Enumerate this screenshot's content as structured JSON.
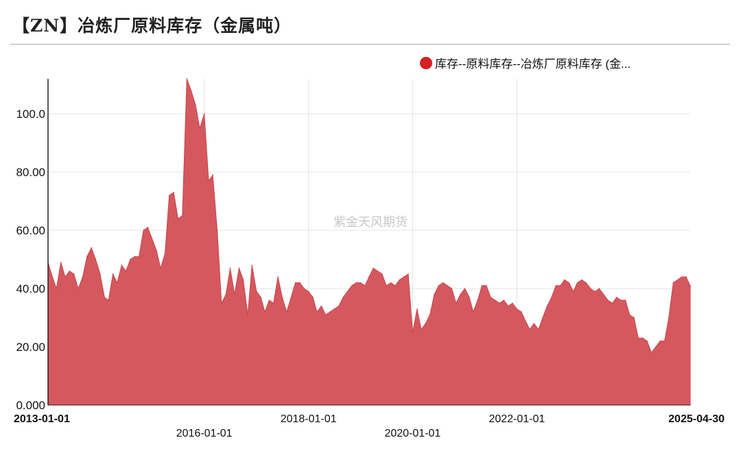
{
  "title": "【ZN】冶炼厂原料库存（金属吨）",
  "watermark": "紫金天风期货",
  "legend": {
    "label": "库存--原料库存--冶炼厂原料库存 (金..."
  },
  "colors": {
    "series_fill": "#d5585e",
    "series_line": "#c9444c",
    "legend_dot": "#d42020"
  },
  "chart_data": {
    "type": "area",
    "title": "【ZN】冶炼厂原料库存（金属吨）",
    "xlabel": "",
    "ylabel": "",
    "ylim": [
      0,
      112
    ],
    "xlim": [
      "2013-01-01",
      "2025-04-30"
    ],
    "grid": true,
    "legend_position": "top-right",
    "yticks": [
      "0.000",
      "20.00",
      "40.00",
      "60.00",
      "80.00",
      "100.0"
    ],
    "xticks": [
      {
        "label": "2013-01-01",
        "date": "2013-01-01",
        "bold": true
      },
      {
        "label": "2016-01-01",
        "date": "2016-01-01",
        "bold": false
      },
      {
        "label": "2018-01-01",
        "date": "2018-01-01",
        "bold": false
      },
      {
        "label": "2020-01-01",
        "date": "2020-01-01",
        "bold": false
      },
      {
        "label": "2022-01-01",
        "date": "2022-01-01",
        "bold": false
      },
      {
        "label": "2025-04-30",
        "date": "2025-04-30",
        "bold": true
      }
    ],
    "series": [
      {
        "name": "库存--原料库存--冶炼厂原料库存 (金...",
        "points": [
          [
            "2013-01-01",
            49
          ],
          [
            "2013-02-01",
            44
          ],
          [
            "2013-03-01",
            40
          ],
          [
            "2013-04-01",
            49
          ],
          [
            "2013-05-01",
            44
          ],
          [
            "2013-06-01",
            46
          ],
          [
            "2013-07-01",
            45
          ],
          [
            "2013-08-01",
            40
          ],
          [
            "2013-09-01",
            44
          ],
          [
            "2013-10-01",
            51
          ],
          [
            "2013-11-01",
            54
          ],
          [
            "2013-12-01",
            50
          ],
          [
            "2014-01-01",
            45
          ],
          [
            "2014-02-01",
            37
          ],
          [
            "2014-03-01",
            36
          ],
          [
            "2014-04-01",
            45
          ],
          [
            "2014-05-01",
            42
          ],
          [
            "2014-06-01",
            48
          ],
          [
            "2014-07-01",
            46
          ],
          [
            "2014-08-01",
            50
          ],
          [
            "2014-09-01",
            51
          ],
          [
            "2014-10-01",
            51
          ],
          [
            "2014-11-01",
            60
          ],
          [
            "2014-12-01",
            61
          ],
          [
            "2015-01-01",
            57
          ],
          [
            "2015-02-01",
            53
          ],
          [
            "2015-03-01",
            47
          ],
          [
            "2015-04-01",
            52
          ],
          [
            "2015-05-01",
            72
          ],
          [
            "2015-06-01",
            73
          ],
          [
            "2015-07-01",
            64
          ],
          [
            "2015-08-01",
            65
          ],
          [
            "2015-09-01",
            112
          ],
          [
            "2015-10-01",
            108
          ],
          [
            "2015-11-01",
            103
          ],
          [
            "2015-12-01",
            95
          ],
          [
            "2016-01-01",
            100
          ],
          [
            "2016-02-01",
            77
          ],
          [
            "2016-03-01",
            79
          ],
          [
            "2016-04-01",
            60
          ],
          [
            "2016-05-01",
            35
          ],
          [
            "2016-06-01",
            38
          ],
          [
            "2016-07-01",
            47
          ],
          [
            "2016-08-01",
            38
          ],
          [
            "2016-09-01",
            47
          ],
          [
            "2016-10-01",
            43
          ],
          [
            "2016-11-01",
            31
          ],
          [
            "2016-12-01",
            48
          ],
          [
            "2017-01-01",
            39
          ],
          [
            "2017-02-01",
            37
          ],
          [
            "2017-03-01",
            32
          ],
          [
            "2017-04-01",
            36
          ],
          [
            "2017-05-01",
            35
          ],
          [
            "2017-06-01",
            44
          ],
          [
            "2017-07-01",
            37
          ],
          [
            "2017-08-01",
            32
          ],
          [
            "2017-09-01",
            37
          ],
          [
            "2017-10-01",
            42
          ],
          [
            "2017-11-01",
            42
          ],
          [
            "2017-12-01",
            40
          ],
          [
            "2018-01-01",
            39
          ],
          [
            "2018-02-01",
            37
          ],
          [
            "2018-03-01",
            32
          ],
          [
            "2018-04-01",
            34
          ],
          [
            "2018-05-01",
            31
          ],
          [
            "2018-06-01",
            32
          ],
          [
            "2018-07-01",
            33
          ],
          [
            "2018-08-01",
            34
          ],
          [
            "2018-09-01",
            37
          ],
          [
            "2018-10-01",
            39
          ],
          [
            "2018-11-01",
            41
          ],
          [
            "2018-12-01",
            42
          ],
          [
            "2019-01-01",
            42
          ],
          [
            "2019-02-01",
            41
          ],
          [
            "2019-03-01",
            44
          ],
          [
            "2019-04-01",
            47
          ],
          [
            "2019-05-01",
            46
          ],
          [
            "2019-06-01",
            45
          ],
          [
            "2019-07-01",
            41
          ],
          [
            "2019-08-01",
            42
          ],
          [
            "2019-09-01",
            41
          ],
          [
            "2019-10-01",
            43
          ],
          [
            "2019-11-01",
            44
          ],
          [
            "2019-12-01",
            45
          ],
          [
            "2020-01-01",
            25
          ],
          [
            "2020-02-01",
            33
          ],
          [
            "2020-03-01",
            26
          ],
          [
            "2020-04-01",
            28
          ],
          [
            "2020-05-01",
            31
          ],
          [
            "2020-06-01",
            38
          ],
          [
            "2020-07-01",
            41
          ],
          [
            "2020-08-01",
            42
          ],
          [
            "2020-09-01",
            41
          ],
          [
            "2020-10-01",
            40
          ],
          [
            "2020-11-01",
            35
          ],
          [
            "2020-12-01",
            38
          ],
          [
            "2021-01-01",
            40
          ],
          [
            "2021-02-01",
            37
          ],
          [
            "2021-03-01",
            32
          ],
          [
            "2021-04-01",
            36
          ],
          [
            "2021-05-01",
            41
          ],
          [
            "2021-06-01",
            41
          ],
          [
            "2021-07-01",
            37
          ],
          [
            "2021-08-01",
            36
          ],
          [
            "2021-09-01",
            35
          ],
          [
            "2021-10-01",
            36
          ],
          [
            "2021-11-01",
            34
          ],
          [
            "2021-12-01",
            35
          ],
          [
            "2022-01-01",
            33
          ],
          [
            "2022-02-01",
            32
          ],
          [
            "2022-03-01",
            29
          ],
          [
            "2022-04-01",
            26
          ],
          [
            "2022-05-01",
            28
          ],
          [
            "2022-06-01",
            26
          ],
          [
            "2022-07-01",
            30
          ],
          [
            "2022-08-01",
            34
          ],
          [
            "2022-09-01",
            37
          ],
          [
            "2022-10-01",
            41
          ],
          [
            "2022-11-01",
            41
          ],
          [
            "2022-12-01",
            43
          ],
          [
            "2023-01-01",
            42
          ],
          [
            "2023-02-01",
            39
          ],
          [
            "2023-03-01",
            42
          ],
          [
            "2023-04-01",
            43
          ],
          [
            "2023-05-01",
            42
          ],
          [
            "2023-06-01",
            40
          ],
          [
            "2023-07-01",
            39
          ],
          [
            "2023-08-01",
            40
          ],
          [
            "2023-09-01",
            38
          ],
          [
            "2023-10-01",
            36
          ],
          [
            "2023-11-01",
            35
          ],
          [
            "2023-12-01",
            37
          ],
          [
            "2024-01-01",
            36
          ],
          [
            "2024-02-01",
            36
          ],
          [
            "2024-03-01",
            31
          ],
          [
            "2024-04-01",
            30
          ],
          [
            "2024-05-01",
            23
          ],
          [
            "2024-06-01",
            23
          ],
          [
            "2024-07-01",
            22
          ],
          [
            "2024-08-01",
            18
          ],
          [
            "2024-09-01",
            20
          ],
          [
            "2024-10-01",
            22
          ],
          [
            "2024-11-01",
            22
          ],
          [
            "2024-12-01",
            30
          ],
          [
            "2025-01-01",
            42
          ],
          [
            "2025-02-01",
            43
          ],
          [
            "2025-03-01",
            44
          ],
          [
            "2025-04-01",
            44
          ],
          [
            "2025-04-30",
            41
          ]
        ]
      }
    ]
  }
}
